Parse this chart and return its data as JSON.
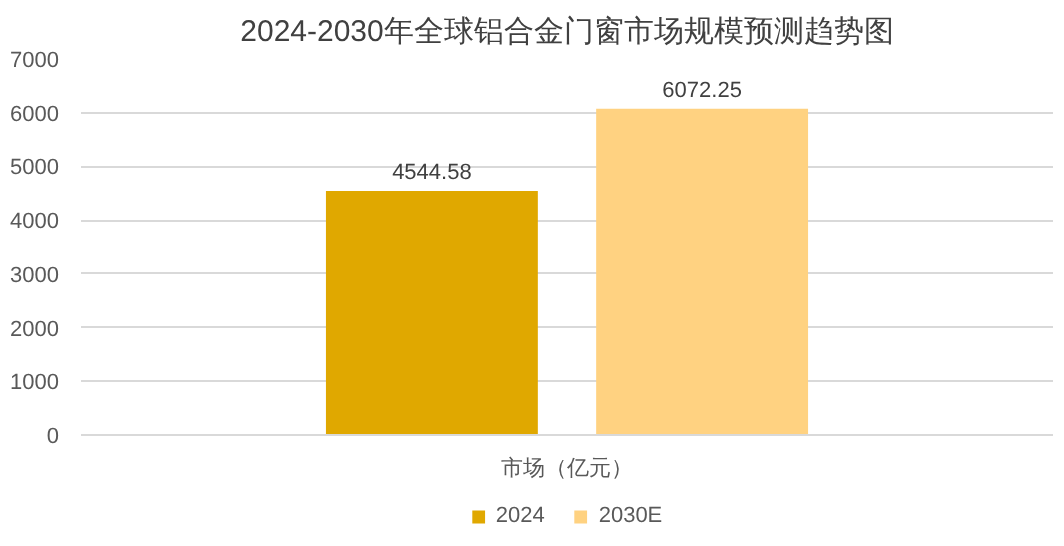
{
  "chart_data": {
    "type": "bar",
    "title": "2024-2030年全球铝合金门窗市场规模预测趋势图",
    "categories": [
      "市场（亿元）"
    ],
    "series": [
      {
        "name": "2024",
        "color": "#e0a800",
        "values": [
          4544.58
        ]
      },
      {
        "name": "2030E",
        "color": "#ffd281",
        "values": [
          6072.25
        ]
      }
    ],
    "ylim": [
      0,
      7000
    ],
    "yticks": [
      0,
      1000,
      2000,
      3000,
      4000,
      5000,
      6000,
      7000
    ],
    "grid": "y",
    "legend": "bottom",
    "data_labels": true
  }
}
